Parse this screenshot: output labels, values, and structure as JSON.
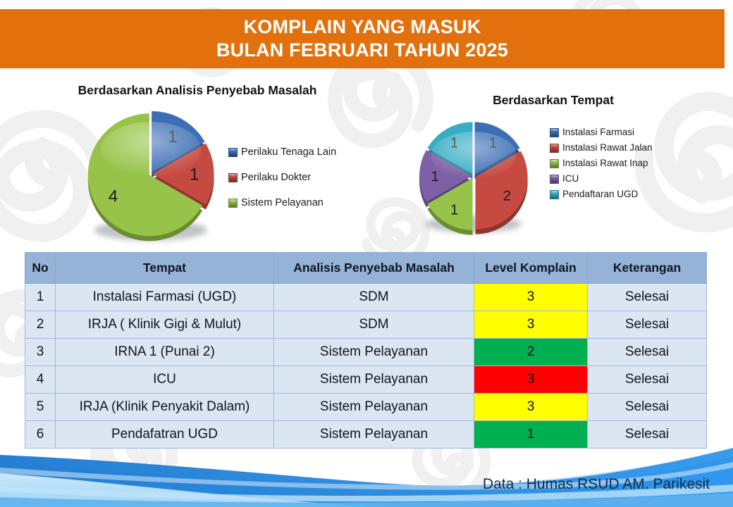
{
  "banner": {
    "line1": "KOMPLAIN YANG MASUK",
    "line2": "BULAN FEBRUARI TAHUN 2025",
    "bg_color": "#E2710D",
    "text_color": "#FFFFFF"
  },
  "chart_data": [
    {
      "type": "pie",
      "title": "Berdasarkan Analisis Penyebab Masalah",
      "categories": [
        "Perilaku Tenaga Lain",
        "Perilaku Dokter",
        "Sistem Pelayanan"
      ],
      "values": [
        1,
        1,
        4
      ],
      "data_labels": [
        "1",
        "1",
        "4"
      ],
      "colors": [
        "#3D6EB5",
        "#C64A41",
        "#96C348"
      ],
      "legend_position": "right",
      "start_angle": "top",
      "direction": "clockwise"
    },
    {
      "type": "pie",
      "title": "Berdasarkan Tempat",
      "categories": [
        "Instalasi Farmasi",
        "Instalasi Rawat Jalan",
        "Instalasi Rawat Inap",
        "ICU",
        "Pendaftaran UGD"
      ],
      "values": [
        1,
        2,
        1,
        1,
        1
      ],
      "data_labels": [
        "1",
        "2",
        "1",
        "1",
        "1"
      ],
      "colors": [
        "#3D6EB5",
        "#C64A41",
        "#96C348",
        "#7D60A6",
        "#36ADC5"
      ],
      "legend_position": "right",
      "start_angle": "top",
      "direction": "clockwise"
    }
  ],
  "table": {
    "headers": [
      "No",
      "Tempat",
      "Analisis Penyebab Masalah",
      "Level Komplain",
      "Keterangan"
    ],
    "header_bg": "#95B3D7",
    "row_bg": "#DCE6F2",
    "level_colors": {
      "yellow": "#FFFF00",
      "green": "#00B050",
      "red": "#FF0000"
    },
    "rows": [
      {
        "no": "1",
        "tempat": "Instalasi Farmasi (UGD)",
        "analisis": "SDM",
        "level": "3",
        "level_bg": "#FFFF00",
        "keterangan": "Selesai"
      },
      {
        "no": "2",
        "tempat": "IRJA ( Klinik Gigi & Mulut)",
        "analisis": "SDM",
        "level": "3",
        "level_bg": "#FFFF00",
        "keterangan": "Selesai"
      },
      {
        "no": "3",
        "tempat": "IRNA 1 (Punai 2)",
        "analisis": "Sistem Pelayanan",
        "level": "2",
        "level_bg": "#00B050",
        "keterangan": "Selesai"
      },
      {
        "no": "4",
        "tempat": "ICU",
        "analisis": "Sistem Pelayanan",
        "level": "3",
        "level_bg": "#FF0000",
        "keterangan": "Selesai"
      },
      {
        "no": "5",
        "tempat": "IRJA (Klinik Penyakit Dalam)",
        "analisis": "Sistem Pelayanan",
        "level": "3",
        "level_bg": "#FFFF00",
        "keterangan": "Selesai"
      },
      {
        "no": "6",
        "tempat": "Pendafatran UGD",
        "analisis": "Sistem Pelayanan",
        "level": "1",
        "level_bg": "#00B050",
        "keterangan": "Selesai"
      }
    ]
  },
  "footer": {
    "credit": "Data : Humas RSUD AM. Parikesit"
  }
}
